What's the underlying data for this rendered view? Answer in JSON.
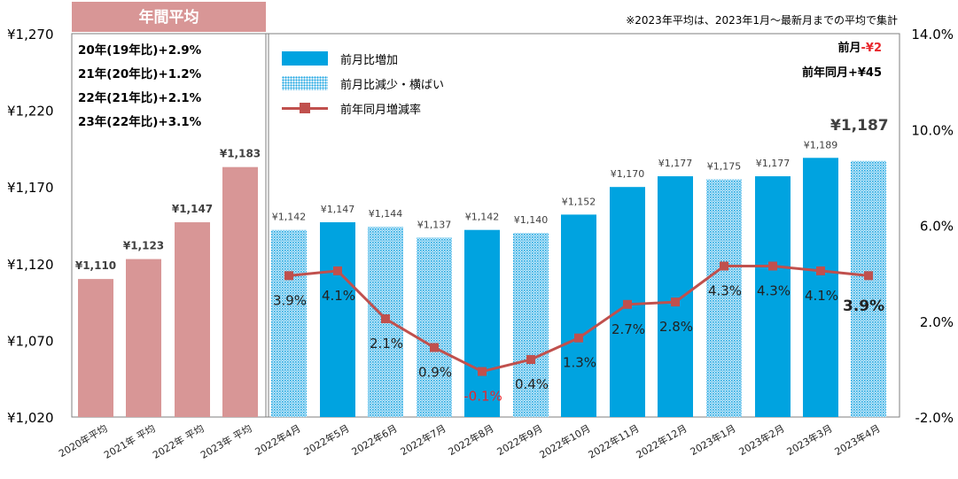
{
  "title_badge": "年間平均",
  "footnote": "※2023年平均は、2023年1月～最新月までの平均で集計",
  "prev_month": {
    "label": "前月",
    "value": "-¥2"
  },
  "prev_year_month": {
    "label": "前年同月",
    "value": "+¥45"
  },
  "current_value_label": "¥1,187",
  "current_rate_label": "3.9%",
  "annual_summary": [
    "20年(19年比)+2.9%",
    "21年(20年比)+1.2%",
    "22年(21年比)+2.1%",
    "23年(22年比)+3.1%"
  ],
  "legend": [
    {
      "label": "前月比増加",
      "style": "solid"
    },
    {
      "label": "前月比減少・横ばい",
      "style": "dotted"
    },
    {
      "label": "前年同月増減率",
      "style": "line"
    }
  ],
  "colors": {
    "annual_bar": "#d89696",
    "increase_bar": "#00a3e0",
    "decrease_bar": "#9fd3ef",
    "rate_line": "#c0504d",
    "badge_bg": "#d89696",
    "negative": "#e8262c"
  },
  "chart_data": {
    "type": "bar",
    "categories": [
      "2020年平均",
      "2021年 平均",
      "2022年 平均",
      "2023年 平均",
      "2022年4月",
      "2022年5月",
      "2022年6月",
      "2022年7月",
      "2022年8月",
      "2022年9月",
      "2022年10月",
      "2022年11月",
      "2022年12月",
      "2023年1月",
      "2023年2月",
      "2023年3月",
      "2023年4月"
    ],
    "bar_values": [
      1110,
      1123,
      1147,
      1183,
      1142,
      1147,
      1144,
      1137,
      1142,
      1140,
      1152,
      1170,
      1177,
      1175,
      1177,
      1189,
      1187
    ],
    "bar_labels": [
      "¥1,110",
      "¥1,123",
      "¥1,147",
      "¥1,183",
      "¥1,142",
      "¥1,147",
      "¥1,144",
      "¥1,137",
      "¥1,142",
      "¥1,140",
      "¥1,152",
      "¥1,170",
      "¥1,177",
      "¥1,175",
      "¥1,177",
      "¥1,189",
      ""
    ],
    "bar_kind": [
      "annual",
      "annual",
      "annual",
      "annual",
      "decrease",
      "increase",
      "decrease",
      "decrease",
      "increase",
      "decrease",
      "increase",
      "increase",
      "increase",
      "decrease",
      "increase",
      "increase",
      "decrease"
    ],
    "rate_values": [
      3.9,
      4.1,
      2.1,
      0.9,
      -0.1,
      0.4,
      1.3,
      2.7,
      2.8,
      4.3,
      4.3,
      4.1,
      3.9
    ],
    "rate_labels": [
      "3.9%",
      "4.1%",
      "2.1%",
      "0.9%",
      "-0.1%",
      "0.4%",
      "1.3%",
      "2.7%",
      "2.8%",
      "4.3%",
      "4.3%",
      "4.1%",
      ""
    ],
    "y_left": {
      "min": 1020,
      "max": 1270,
      "ticks": [
        1020,
        1070,
        1120,
        1170,
        1220,
        1270
      ],
      "tick_labels": [
        "¥1,020",
        "¥1,070",
        "¥1,120",
        "¥1,170",
        "¥1,220",
        "¥1,270"
      ]
    },
    "y_right": {
      "min": -2.0,
      "max": 14.0,
      "ticks": [
        -2,
        2,
        6,
        10,
        14
      ],
      "tick_labels": [
        "-2.0%",
        "2.0%",
        "6.0%",
        "10.0%",
        "14.0%"
      ]
    }
  }
}
